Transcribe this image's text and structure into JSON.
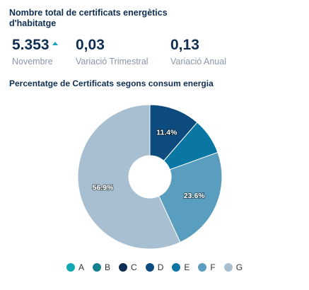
{
  "header": {
    "title": "Nombre total de certificats energètics d'habitatge"
  },
  "stats": [
    {
      "value": "5.353",
      "label": "Novembre",
      "trend": "up"
    },
    {
      "value": "0,03",
      "label": "Variació Trimestral"
    },
    {
      "value": "0,13",
      "label": "Variació Anual"
    }
  ],
  "chart_data": {
    "type": "pie",
    "donut": true,
    "title": "Percentatge de Certificats segons consum energia",
    "categories": [
      "A",
      "B",
      "C",
      "D",
      "E",
      "F",
      "G"
    ],
    "values": [
      0.0,
      0.0,
      0.0,
      11.4,
      8.1,
      23.6,
      56.9
    ],
    "labels": [
      "",
      "",
      "",
      "11.4%",
      "",
      "23.6%",
      "56.9%"
    ],
    "colors": [
      "#12a7b3",
      "#117f8c",
      "#0d2d52",
      "#0d4b7e",
      "#0a76a3",
      "#5a9ebf",
      "#a7bfd0"
    ],
    "legend_position": "bottom"
  }
}
